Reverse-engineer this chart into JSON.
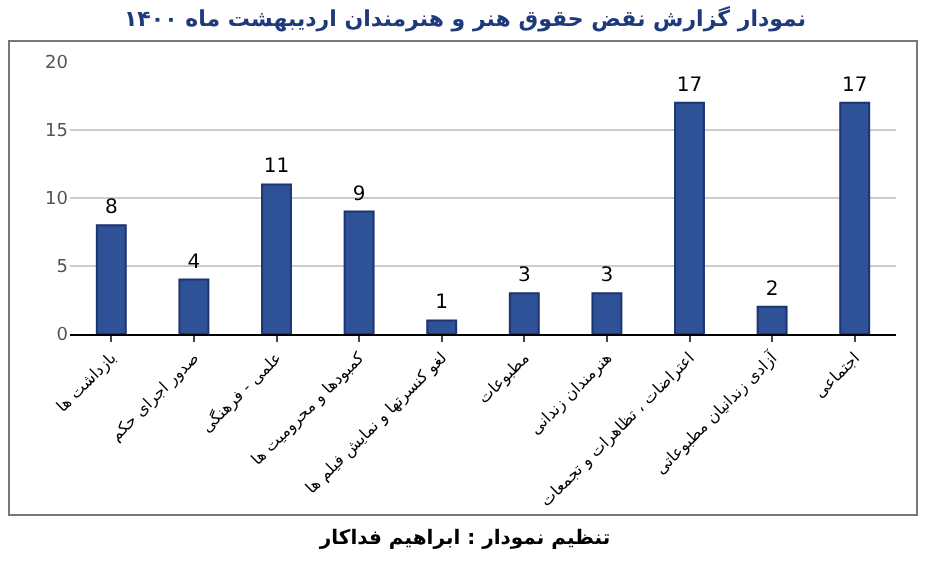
{
  "chart_data": {
    "type": "bar",
    "title": "نمودار گزارش نقض حقوق هنر و هنرمندان اردیبهشت ماه ۱۴۰۰",
    "categories": [
      "بازداشت ها",
      "صدور اجرای حکم",
      "علمی - فرهنگی",
      "کمبودها و محرومیت ها",
      "لغو کنسرتها و نمایش فیلم ها",
      "مطبوعات",
      "هنرمندان زندانی",
      "اعتراضات ، تظاهرات و تجمعات",
      "آزادی زندانیان مطبوعاتی",
      "اجتماعی"
    ],
    "values": [
      8,
      4,
      11,
      9,
      1,
      3,
      3,
      17,
      2,
      17
    ],
    "color": "#2f5197",
    "ylim": [
      0,
      20
    ],
    "yticks": [
      0,
      5,
      10,
      15,
      20
    ],
    "grid": "y",
    "data_labels": true,
    "annotations": [
      "تنظیم نمودار : ابراهیم فداکار"
    ]
  }
}
